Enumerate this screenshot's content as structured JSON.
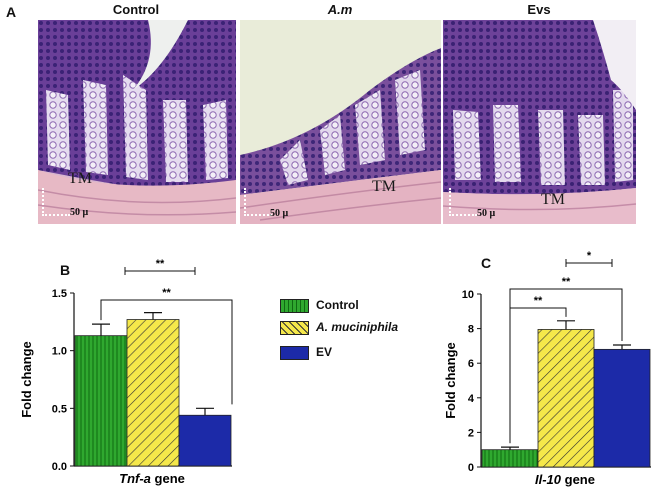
{
  "panel_a": {
    "letter": "A",
    "images": [
      {
        "title": "Control",
        "italic": false,
        "tissue_label": "TM",
        "scale_label": "50 μ"
      },
      {
        "title": "A.m",
        "italic": true,
        "tissue_label": "TM",
        "scale_label": "50 μ"
      },
      {
        "title": "Evs",
        "italic": false,
        "tissue_label": "TM",
        "scale_label": "50 μ"
      }
    ]
  },
  "legend": {
    "items": [
      {
        "label": "Control",
        "italic": false,
        "color": "#2fa82f",
        "pattern": "vertical-stripes"
      },
      {
        "label": "A. muciniphila",
        "italic": true,
        "color": "#f5e84a",
        "pattern": "diagonal-hatch"
      },
      {
        "label": "EV",
        "italic": false,
        "color": "#1c2aa8",
        "pattern": "solid"
      }
    ]
  },
  "colors": {
    "control": "#2fa82f",
    "akkermansia": "#f5e84a",
    "ev": "#1c2aa8",
    "photo_tissue": "#c9a3c9",
    "photo_nuclei": "#4b2f86"
  },
  "chart_data": [
    {
      "panel": "B",
      "type": "bar",
      "categories": [
        "Control",
        "A. muciniphila",
        "EV"
      ],
      "values": [
        1.13,
        1.27,
        0.44
      ],
      "errors": [
        0.1,
        0.06,
        0.06
      ],
      "ylabel": "Fold change",
      "xlabel_gene": "Tnf-a",
      "xlabel_suffix": " gene",
      "ylim": [
        0,
        1.5
      ],
      "yticks": [
        "0.0",
        "0.5",
        "1.0",
        "1.5"
      ],
      "significance": [
        {
          "from": "A. muciniphila",
          "to": "EV",
          "label": "**"
        },
        {
          "from": "Control",
          "to": "EV",
          "label": "**"
        }
      ]
    },
    {
      "panel": "C",
      "type": "bar",
      "categories": [
        "Control",
        "A. muciniphila",
        "EV"
      ],
      "values": [
        1.0,
        7.95,
        6.8
      ],
      "errors": [
        0.15,
        0.5,
        0.25
      ],
      "ylabel": "Fold change",
      "xlabel_gene": "Il-10",
      "xlabel_suffix": " gene",
      "ylim": [
        0,
        10
      ],
      "yticks": [
        "0",
        "2",
        "4",
        "6",
        "8",
        "10"
      ],
      "significance": [
        {
          "from": "A. muciniphila",
          "to": "EV",
          "label": "*"
        },
        {
          "from": "Control",
          "to": "EV",
          "label": "**"
        },
        {
          "from": "Control",
          "to": "A. muciniphila",
          "label": "**"
        }
      ]
    }
  ]
}
